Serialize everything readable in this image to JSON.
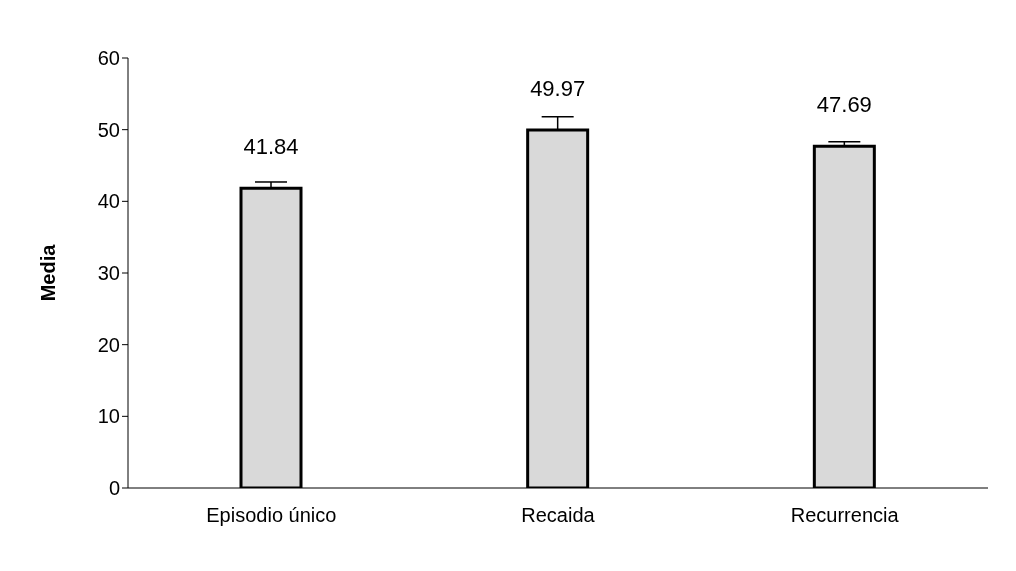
{
  "chart_data": {
    "type": "bar",
    "ylabel": "Media",
    "categories": [
      "Episodio único",
      "Recaida",
      "Recurrencia"
    ],
    "values": [
      41.84,
      49.97,
      47.69
    ],
    "errors": [
      [
        41.84,
        42.7
      ],
      [
        49.97,
        51.8
      ],
      [
        47.69,
        48.3
      ]
    ],
    "color": "#d9d9d9",
    "ylim": [
      0,
      60
    ],
    "yticks": [
      0,
      10,
      20,
      30,
      40,
      50,
      60
    ],
    "grid": false,
    "data_labels": true
  }
}
